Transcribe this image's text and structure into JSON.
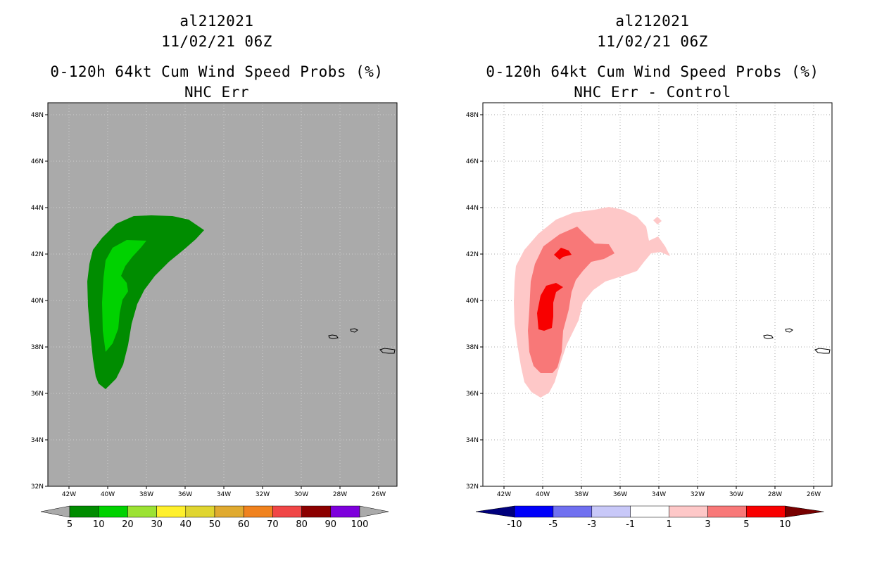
{
  "left_panel": {
    "storm_id": "al212021",
    "datetime": "11/02/21 06Z",
    "product": "0-120h 64kt Cum Wind Speed Probs (%)",
    "subtitle": "NHC Err",
    "background_color": "#aaaaaa",
    "colorbar": {
      "labels": [
        "5",
        "10",
        "20",
        "30",
        "40",
        "50",
        "60",
        "70",
        "80",
        "90",
        "100"
      ],
      "colors": [
        "#008c00",
        "#00d200",
        "#9ce233",
        "#fff02c",
        "#e0d530",
        "#e0aa30",
        "#f0821e",
        "#f04646",
        "#8c0000",
        "#7d00dc"
      ],
      "end_color": "#aaaaaa"
    }
  },
  "right_panel": {
    "storm_id": "al212021",
    "datetime": "11/02/21 06Z",
    "product": "0-120h 64kt Cum Wind Speed Probs (%)",
    "subtitle": "NHC Err - Control",
    "background_color": "#ffffff",
    "colorbar": {
      "labels": [
        "-10",
        "-5",
        "-3",
        "-1",
        "1",
        "3",
        "5",
        "10"
      ],
      "colors": [
        "#0000fa",
        "#7070f0",
        "#c8c8f8",
        "#ffffff",
        "#fec8c8",
        "#f87878",
        "#f80000"
      ],
      "low_end_color": "#00007d",
      "high_end_color": "#780000"
    }
  },
  "axes": {
    "lat_labels": [
      "48N",
      "46N",
      "44N",
      "42N",
      "40N",
      "38N",
      "36N",
      "34N",
      "32N"
    ],
    "lon_labels": [
      "42W",
      "40W",
      "38W",
      "36W",
      "34W",
      "32W",
      "30W",
      "28W",
      "26W"
    ]
  }
}
